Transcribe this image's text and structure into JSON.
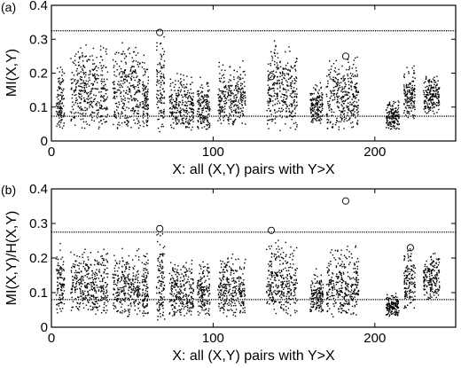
{
  "chart_data": [
    {
      "type": "scatter",
      "panel_label": "(a)",
      "xlabel": "X: all (X,Y) pairs with Y>X",
      "ylabel": "MI(X,Y)",
      "xlim": [
        0,
        250
      ],
      "ylim": [
        0,
        0.4
      ],
      "xticks": [
        "0",
        "100",
        "200"
      ],
      "xtick_values": [
        0,
        100,
        200
      ],
      "yticks": [
        "0",
        "0.1",
        "0.2",
        "0.3",
        "0.4"
      ],
      "ytick_values": [
        0,
        0.1,
        0.2,
        0.3,
        0.4
      ],
      "grid": false,
      "marker": "dot",
      "thresholds": [
        {
          "y": 0.325,
          "style": "dotted"
        },
        {
          "y": 0.073,
          "style": "dotted"
        }
      ],
      "clusters": [
        {
          "x": [
            3,
            8
          ],
          "y": [
            0.03,
            0.23
          ]
        },
        {
          "x": [
            12,
            35
          ],
          "y": [
            0.03,
            0.31
          ]
        },
        {
          "x": [
            38,
            55
          ],
          "y": [
            0.03,
            0.3
          ]
        },
        {
          "x": [
            56,
            60
          ],
          "y": [
            0.03,
            0.26
          ]
        },
        {
          "x": [
            65,
            70
          ],
          "y": [
            0.02,
            0.33
          ]
        },
        {
          "x": [
            73,
            88
          ],
          "y": [
            0.03,
            0.21
          ]
        },
        {
          "x": [
            90,
            98
          ],
          "y": [
            0.03,
            0.19
          ]
        },
        {
          "x": [
            103,
            120
          ],
          "y": [
            0.04,
            0.24
          ]
        },
        {
          "x": [
            133,
            152
          ],
          "y": [
            0.03,
            0.3
          ]
        },
        {
          "x": [
            160,
            168
          ],
          "y": [
            0.05,
            0.18
          ]
        },
        {
          "x": [
            170,
            190
          ],
          "y": [
            0.03,
            0.26
          ]
        },
        {
          "x": [
            207,
            215
          ],
          "y": [
            0.03,
            0.13
          ]
        },
        {
          "x": [
            218,
            225
          ],
          "y": [
            0.06,
            0.23
          ]
        },
        {
          "x": [
            230,
            240
          ],
          "y": [
            0.08,
            0.2
          ]
        }
      ],
      "outliers": [
        {
          "x": 67,
          "y": 0.32
        },
        {
          "x": 136,
          "y": 0.19
        },
        {
          "x": 182,
          "y": 0.25
        }
      ]
    },
    {
      "type": "scatter",
      "panel_label": "(b)",
      "xlabel": "X: all (X,Y) pairs with Y>X",
      "ylabel": "MI(X,Y)/H(X,Y)",
      "xlim": [
        0,
        250
      ],
      "ylim": [
        0,
        0.4
      ],
      "xticks": [
        "0",
        "100",
        "200"
      ],
      "xtick_values": [
        0,
        100,
        200
      ],
      "yticks": [
        "0",
        "0.1",
        "0.2",
        "0.3",
        "0.4"
      ],
      "ytick_values": [
        0,
        0.1,
        0.2,
        0.3,
        0.4
      ],
      "grid": false,
      "marker": "dot",
      "thresholds": [
        {
          "y": 0.275,
          "style": "dotted"
        },
        {
          "y": 0.08,
          "style": "dotted"
        }
      ],
      "clusters": [
        {
          "x": [
            3,
            8
          ],
          "y": [
            0.03,
            0.25
          ]
        },
        {
          "x": [
            12,
            35
          ],
          "y": [
            0.03,
            0.24
          ]
        },
        {
          "x": [
            38,
            55
          ],
          "y": [
            0.03,
            0.23
          ]
        },
        {
          "x": [
            56,
            60
          ],
          "y": [
            0.03,
            0.22
          ]
        },
        {
          "x": [
            65,
            70
          ],
          "y": [
            0.02,
            0.29
          ]
        },
        {
          "x": [
            73,
            88
          ],
          "y": [
            0.03,
            0.2
          ]
        },
        {
          "x": [
            90,
            98
          ],
          "y": [
            0.03,
            0.2
          ]
        },
        {
          "x": [
            103,
            120
          ],
          "y": [
            0.03,
            0.22
          ]
        },
        {
          "x": [
            133,
            152
          ],
          "y": [
            0.03,
            0.26
          ]
        },
        {
          "x": [
            160,
            168
          ],
          "y": [
            0.04,
            0.17
          ]
        },
        {
          "x": [
            170,
            190
          ],
          "y": [
            0.03,
            0.24
          ]
        },
        {
          "x": [
            207,
            215
          ],
          "y": [
            0.03,
            0.1
          ]
        },
        {
          "x": [
            218,
            225
          ],
          "y": [
            0.05,
            0.24
          ]
        },
        {
          "x": [
            230,
            240
          ],
          "y": [
            0.08,
            0.22
          ]
        }
      ],
      "outliers": [
        {
          "x": 67,
          "y": 0.285
        },
        {
          "x": 136,
          "y": 0.28
        },
        {
          "x": 182,
          "y": 0.365
        },
        {
          "x": 222,
          "y": 0.23
        }
      ]
    }
  ]
}
